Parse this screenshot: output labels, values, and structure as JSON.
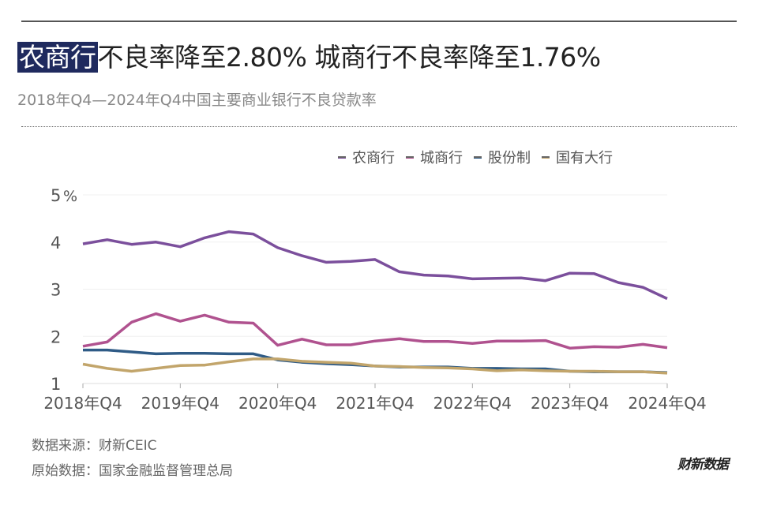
{
  "header": {
    "title_highlight": "农商行",
    "title_rest": "不良率降至2.80% 城商行不良率降至1.76%",
    "subtitle": "2018年Q4—2024年Q4中国主要商业银行不良贷款率"
  },
  "footer": {
    "source": "数据来源：财新CEIC",
    "origin": "原始数据：国家金融监督管理总局",
    "logo": "财新数据"
  },
  "colors": {
    "title_highlight_bg": "#1f2a5e"
  },
  "chart_data": {
    "type": "line",
    "ylabel": "%",
    "ylim": [
      1,
      5
    ],
    "yticks": [
      "1",
      "2",
      "3",
      "4",
      "5"
    ],
    "y_unit": "%",
    "xticks": [
      "2018年Q4",
      "2019年Q4",
      "2020年Q4",
      "2021年Q4",
      "2022年Q4",
      "2023年Q4",
      "2024年Q4"
    ],
    "x": [
      "2018Q4",
      "2019Q1",
      "2019Q2",
      "2019Q3",
      "2019Q4",
      "2020Q1",
      "2020Q2",
      "2020Q3",
      "2020Q4",
      "2021Q1",
      "2021Q2",
      "2021Q3",
      "2021Q4",
      "2022Q1",
      "2022Q2",
      "2022Q3",
      "2022Q4",
      "2023Q1",
      "2023Q2",
      "2023Q3",
      "2023Q4",
      "2024Q1",
      "2024Q2",
      "2024Q3",
      "2024Q4"
    ],
    "grid": true,
    "legend_position": "top-right",
    "series": [
      {
        "name": "农商行",
        "color": "#7b4f9c",
        "values": [
          3.96,
          4.05,
          3.95,
          4.0,
          3.9,
          4.09,
          4.22,
          4.17,
          3.88,
          3.71,
          3.57,
          3.59,
          3.63,
          3.37,
          3.3,
          3.28,
          3.22,
          3.23,
          3.24,
          3.18,
          3.34,
          3.33,
          3.14,
          3.04,
          2.8
        ]
      },
      {
        "name": "城商行",
        "color": "#b0528f",
        "values": [
          1.79,
          1.88,
          2.3,
          2.48,
          2.32,
          2.45,
          2.3,
          2.28,
          1.81,
          1.94,
          1.82,
          1.82,
          1.9,
          1.95,
          1.89,
          1.89,
          1.85,
          1.9,
          1.9,
          1.91,
          1.75,
          1.78,
          1.77,
          1.83,
          1.76
        ]
      },
      {
        "name": "股份制",
        "color": "#2f5b86",
        "values": [
          1.71,
          1.71,
          1.67,
          1.63,
          1.64,
          1.64,
          1.63,
          1.63,
          1.5,
          1.45,
          1.42,
          1.4,
          1.37,
          1.35,
          1.35,
          1.35,
          1.32,
          1.32,
          1.31,
          1.31,
          1.26,
          1.25,
          1.25,
          1.25,
          1.23
        ]
      },
      {
        "name": "国有大行",
        "color": "#c2a56b",
        "values": [
          1.41,
          1.32,
          1.26,
          1.32,
          1.38,
          1.39,
          1.46,
          1.52,
          1.52,
          1.47,
          1.45,
          1.43,
          1.37,
          1.36,
          1.34,
          1.33,
          1.31,
          1.27,
          1.29,
          1.27,
          1.26,
          1.26,
          1.25,
          1.25,
          1.22
        ]
      }
    ]
  }
}
